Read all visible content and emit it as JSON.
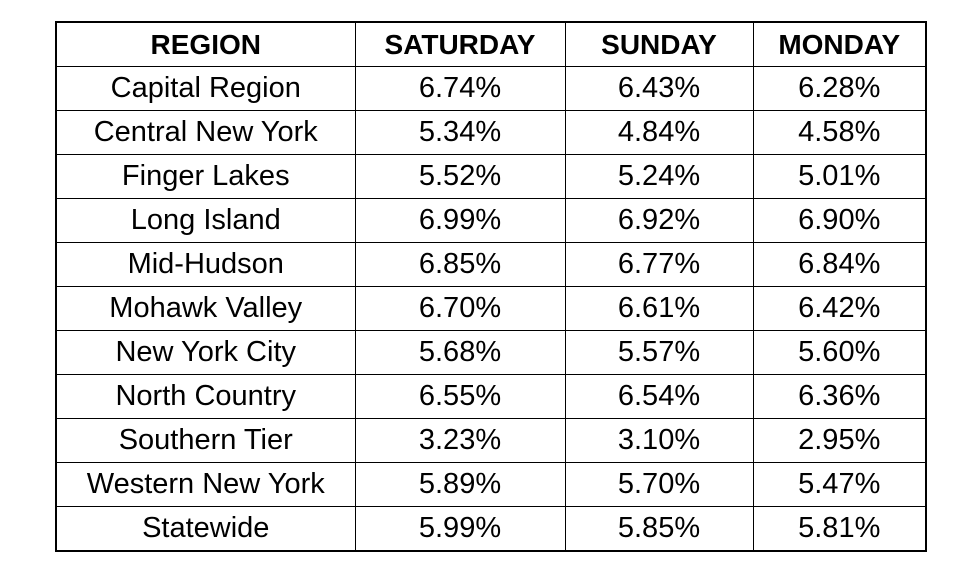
{
  "chart_data": {
    "type": "table",
    "columns": [
      "REGION",
      "SATURDAY",
      "SUNDAY",
      "MONDAY"
    ],
    "rows": [
      [
        "Capital Region",
        "6.74%",
        "6.43%",
        "6.28%"
      ],
      [
        "Central New York",
        "5.34%",
        "4.84%",
        "4.58%"
      ],
      [
        "Finger Lakes",
        "5.52%",
        "5.24%",
        "5.01%"
      ],
      [
        "Long Island",
        "6.99%",
        "6.92%",
        "6.90%"
      ],
      [
        "Mid-Hudson",
        "6.85%",
        "6.77%",
        "6.84%"
      ],
      [
        "Mohawk Valley",
        "6.70%",
        "6.61%",
        "6.42%"
      ],
      [
        "New York City",
        "5.68%",
        "5.57%",
        "5.60%"
      ],
      [
        "North Country",
        "6.55%",
        "6.54%",
        "6.36%"
      ],
      [
        "Southern Tier",
        "3.23%",
        "3.10%",
        "2.95%"
      ],
      [
        "Western New York",
        "5.89%",
        "5.70%",
        "5.47%"
      ],
      [
        "Statewide",
        "5.99%",
        "5.85%",
        "5.81%"
      ]
    ]
  }
}
